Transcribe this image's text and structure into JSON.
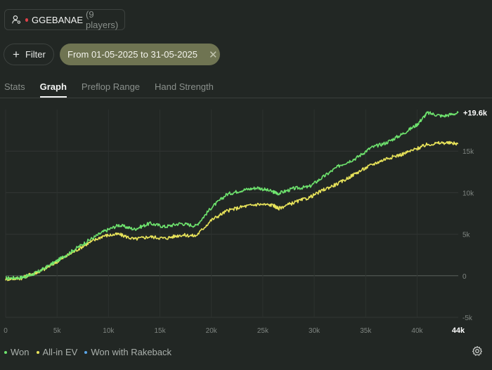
{
  "header": {
    "player_name": "GGEBANAE",
    "player_count": "(9 players)"
  },
  "filters": {
    "filter_label": "Filter",
    "date_range": "From 01-05-2025 to 31-05-2025"
  },
  "tabs": [
    {
      "label": "Stats",
      "active": false
    },
    {
      "label": "Graph",
      "active": true
    },
    {
      "label": "Preflop Range",
      "active": false
    },
    {
      "label": "Hand Strength",
      "active": false
    }
  ],
  "chart_data": {
    "type": "line",
    "xlim": [
      0,
      44000
    ],
    "ylim": [
      -5000,
      20000
    ],
    "x_ticks": [
      "0",
      "5k",
      "10k",
      "15k",
      "20k",
      "25k",
      "30k",
      "35k",
      "40k"
    ],
    "x_max_label": "44k",
    "y_ticks": [
      "-5k",
      "0",
      "5k",
      "10k",
      "15k"
    ],
    "final_value_label": "+19.6k",
    "grid": true,
    "legend_position": "bottom-left",
    "series": [
      {
        "name": "Won",
        "color": "#6ee36e",
        "x": [
          0,
          1500,
          2500,
          3500,
          5000,
          6500,
          8000,
          9500,
          11000,
          12500,
          14000,
          15500,
          17000,
          18500,
          20000,
          21500,
          23000,
          24500,
          26000,
          26500,
          28000,
          29500,
          31000,
          32500,
          34000,
          35500,
          37000,
          38500,
          40000,
          41000,
          42500,
          44000
        ],
        "values": [
          -300,
          -200,
          100,
          700,
          1800,
          3000,
          4200,
          5300,
          6100,
          5600,
          6300,
          5900,
          6300,
          6000,
          8200,
          9800,
          10300,
          10600,
          10100,
          9900,
          10500,
          10700,
          12000,
          13300,
          14100,
          15400,
          16000,
          17000,
          18200,
          19600,
          19200,
          19600
        ]
      },
      {
        "name": "All-in EV",
        "color": "#e9e45a",
        "x": [
          0,
          1500,
          2500,
          3500,
          5000,
          6500,
          8000,
          9500,
          11000,
          12500,
          14000,
          15500,
          17000,
          18500,
          20000,
          21500,
          23000,
          24500,
          26000,
          26500,
          28000,
          29500,
          31000,
          32500,
          34000,
          35500,
          37000,
          38500,
          40000,
          41000,
          42500,
          44000
        ],
        "values": [
          -400,
          -300,
          200,
          600,
          1700,
          2800,
          3900,
          4800,
          5000,
          4400,
          4700,
          4500,
          4900,
          4800,
          6700,
          7800,
          8300,
          8600,
          8500,
          8100,
          8800,
          9400,
          10400,
          11200,
          12300,
          13300,
          14100,
          14600,
          15300,
          15800,
          16000,
          15900
        ]
      }
    ]
  },
  "legend": {
    "items": [
      {
        "label": "Won",
        "color": "#6ee36e"
      },
      {
        "label": "All-in EV",
        "color": "#e9e45a"
      },
      {
        "label": "Won with Rakeback",
        "color": "#5aa6e8"
      }
    ]
  },
  "icons": {
    "player": "user-settings-icon",
    "filter": "plus-icon",
    "clear_date": "close-icon",
    "settings": "gear-icon"
  }
}
